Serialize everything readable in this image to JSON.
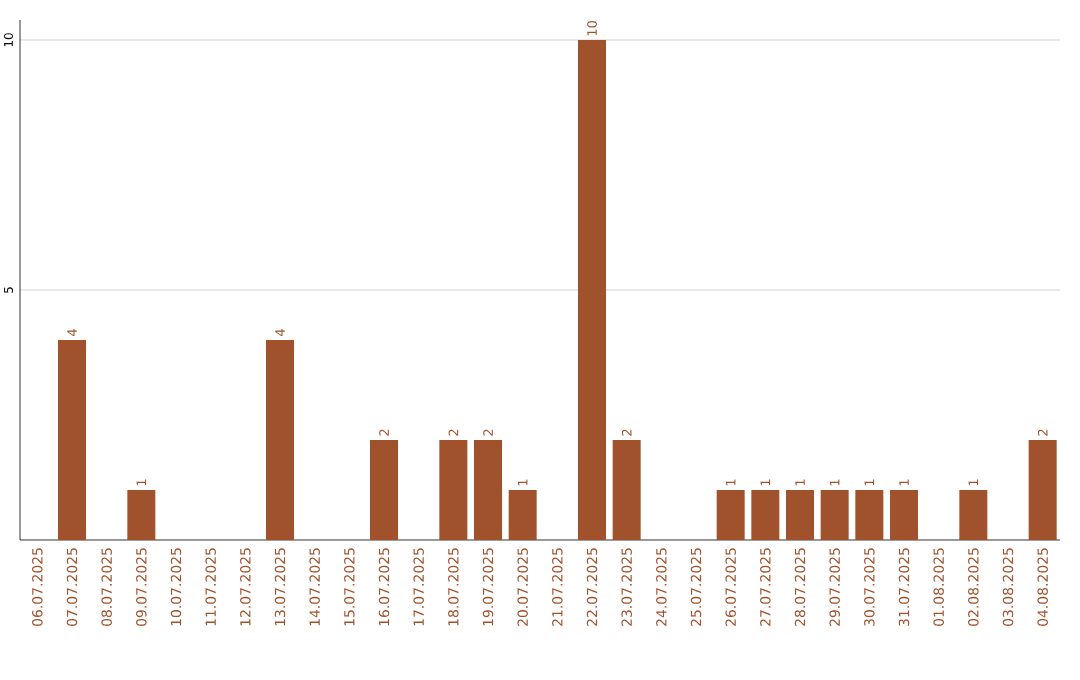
{
  "chart_data": {
    "type": "bar",
    "categories": [
      "06.07.2025",
      "07.07.2025",
      "08.07.2025",
      "09.07.2025",
      "10.07.2025",
      "11.07.2025",
      "12.07.2025",
      "13.07.2025",
      "14.07.2025",
      "15.07.2025",
      "16.07.2025",
      "17.07.2025",
      "18.07.2025",
      "19.07.2025",
      "20.07.2025",
      "21.07.2025",
      "22.07.2025",
      "23.07.2025",
      "24.07.2025",
      "25.07.2025",
      "26.07.2025",
      "27.07.2025",
      "28.07.2025",
      "29.07.2025",
      "30.07.2025",
      "31.07.2025",
      "01.08.2025",
      "02.08.2025",
      "03.08.2025",
      "04.08.2025"
    ],
    "values": [
      0,
      4,
      0,
      1,
      0,
      0,
      0,
      4,
      0,
      0,
      2,
      0,
      2,
      2,
      1,
      0,
      10,
      2,
      0,
      0,
      1,
      1,
      1,
      1,
      1,
      1,
      0,
      1,
      0,
      2
    ],
    "value_labels": [
      null,
      "4",
      null,
      "1",
      null,
      null,
      null,
      "4",
      null,
      null,
      "2",
      null,
      "2",
      "2",
      "1",
      null,
      "10",
      "2",
      null,
      null,
      "1",
      "1",
      "1",
      "1",
      "1",
      "1",
      null,
      "1",
      null,
      "2"
    ],
    "color": "#a0522d",
    "ylim": [
      0,
      10.4
    ],
    "yticks": [
      5,
      10
    ],
    "grid": "y"
  }
}
